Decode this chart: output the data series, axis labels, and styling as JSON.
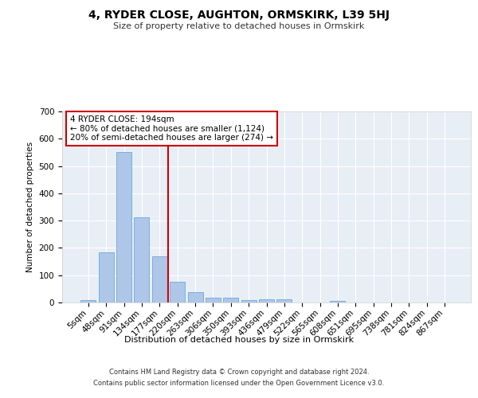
{
  "title": "4, RYDER CLOSE, AUGHTON, ORMSKIRK, L39 5HJ",
  "subtitle": "Size of property relative to detached houses in Ormskirk",
  "xlabel": "Distribution of detached houses by size in Ormskirk",
  "ylabel": "Number of detached properties",
  "bar_labels": [
    "5sqm",
    "48sqm",
    "91sqm",
    "134sqm",
    "177sqm",
    "220sqm",
    "263sqm",
    "306sqm",
    "350sqm",
    "393sqm",
    "436sqm",
    "479sqm",
    "522sqm",
    "565sqm",
    "608sqm",
    "651sqm",
    "695sqm",
    "738sqm",
    "781sqm",
    "824sqm",
    "867sqm"
  ],
  "bar_values": [
    8,
    185,
    550,
    313,
    168,
    75,
    38,
    17,
    17,
    9,
    11,
    11,
    0,
    0,
    5,
    0,
    0,
    0,
    0,
    0,
    0
  ],
  "bar_color": "#aec6e8",
  "bar_edge_color": "#5a9fd4",
  "background_color": "#e8eef6",
  "grid_color": "#ffffff",
  "vline_color": "#cc0000",
  "annotation_text": "4 RYDER CLOSE: 194sqm\n← 80% of detached houses are smaller (1,124)\n20% of semi-detached houses are larger (274) →",
  "annotation_box_color": "#ffffff",
  "annotation_box_edge": "#cc0000",
  "ylim": [
    0,
    700
  ],
  "yticks": [
    0,
    100,
    200,
    300,
    400,
    500,
    600,
    700
  ],
  "footer_line1": "Contains HM Land Registry data © Crown copyright and database right 2024.",
  "footer_line2": "Contains public sector information licensed under the Open Government Licence v3.0."
}
